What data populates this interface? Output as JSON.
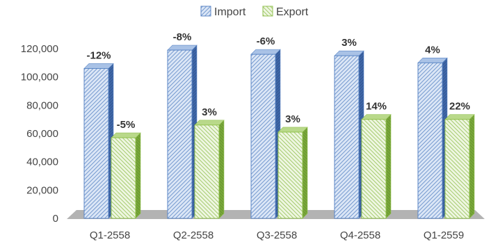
{
  "chart_data": {
    "type": "bar",
    "categories": [
      "Q1-2558",
      "Q2-2558",
      "Q3-2558",
      "Q4-2558",
      "Q1-2559"
    ],
    "series": [
      {
        "name": "Import",
        "values": [
          106000,
          119000,
          116000,
          115000,
          110000
        ],
        "labels": [
          "-12%",
          "-8%",
          "-6%",
          "3%",
          "4%"
        ],
        "color": "#5b86c5"
      },
      {
        "name": "Export",
        "values": [
          57000,
          66000,
          61000,
          70000,
          70000
        ],
        "labels": [
          "-5%",
          "3%",
          "3%",
          "14%",
          "22%"
        ],
        "color": "#92c050"
      }
    ],
    "yticks": [
      "0",
      "20,000",
      "40,000",
      "60,000",
      "80,000",
      "100,000",
      "120,000"
    ],
    "ylim": [
      0,
      120000
    ],
    "legend": "top-center",
    "grid": false,
    "title": "",
    "xlabel": "",
    "ylabel": ""
  }
}
